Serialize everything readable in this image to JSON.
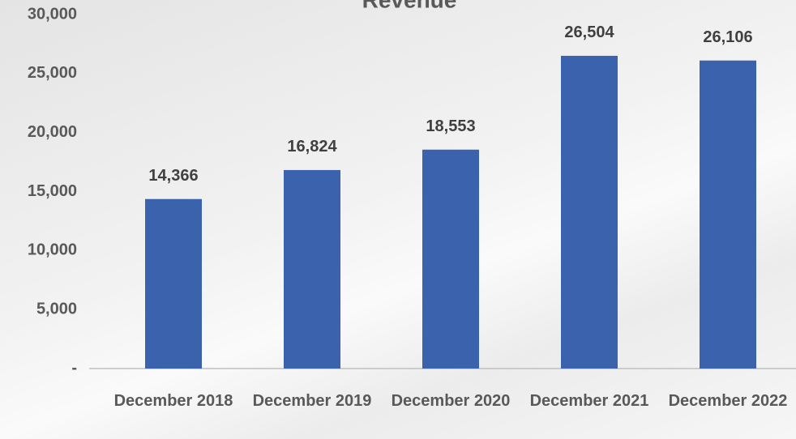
{
  "chart_data": {
    "type": "bar",
    "title": "Revenue",
    "categories": [
      "December 2018",
      "December 2019",
      "December 2020",
      "December 2021",
      "December 2022"
    ],
    "values": [
      14366,
      16824,
      18553,
      26504,
      26106
    ],
    "value_labels": [
      "14,366",
      "16,824",
      "18,553",
      "26,504",
      "26,106"
    ],
    "color": "#3a62ad",
    "ylim": [
      0,
      30000
    ],
    "yticks": [
      {
        "value": 0,
        "label": "-"
      },
      {
        "value": 5000,
        "label": "5,000"
      },
      {
        "value": 10000,
        "label": "10,000"
      },
      {
        "value": 15000,
        "label": "15,000"
      },
      {
        "value": 20000,
        "label": "20,000"
      },
      {
        "value": 25000,
        "label": "25,000"
      },
      {
        "value": 30000,
        "label": "30,000"
      }
    ],
    "grid": false
  }
}
